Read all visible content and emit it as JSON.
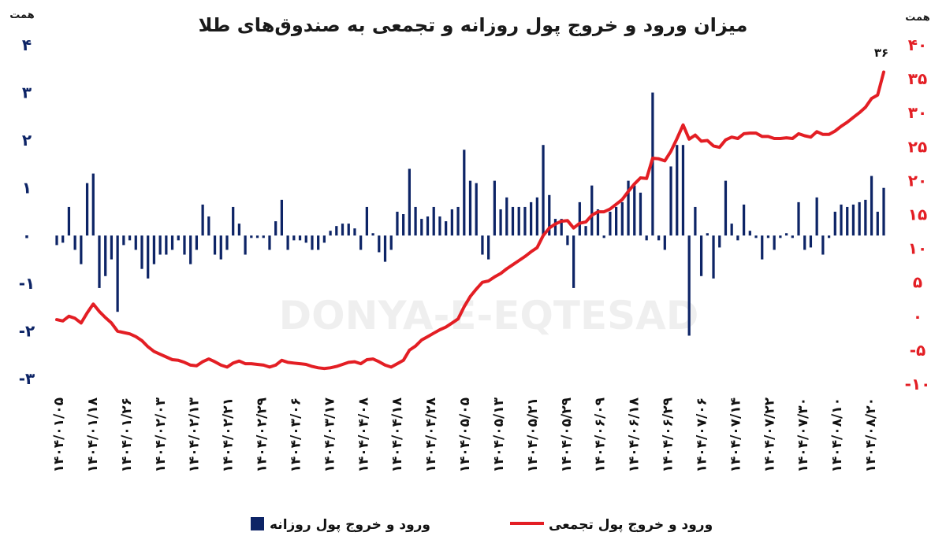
{
  "chart_data": {
    "type": "bar+line",
    "title": "میزان ورود و خروج پول روزانه و تجمعی به صندوق‌های طلا",
    "watermark": "DONYA-E-EQTESAD",
    "left_axis": {
      "unit": "همت",
      "ticks": [
        "۴",
        "۳",
        "۲",
        "۱",
        "۰",
        "-۱",
        "-۲",
        "-۳"
      ],
      "tick_values": [
        4,
        3,
        2,
        1,
        0,
        -1,
        -2,
        -3
      ],
      "ylim": [
        -3,
        4
      ],
      "color": "#0d2466"
    },
    "right_axis": {
      "unit": "همت",
      "ticks": [
        "۴۰",
        "۳۵",
        "۳۰",
        "۲۵",
        "۲۰",
        "۱۵",
        "۱۰",
        "۵",
        "۰",
        "-۵",
        "-۱۰"
      ],
      "tick_values": [
        40,
        35,
        30,
        25,
        20,
        15,
        10,
        5,
        0,
        -5,
        -10
      ],
      "ylim": [
        -10,
        40
      ],
      "color": "#e31e24"
    },
    "x_tick_labels": [
      "۱۴۰۴/۰۱/۰۵",
      "۱۴۰۴/۰۱/۱۸",
      "۱۴۰۴/۰۱/۲۶",
      "۱۴۰۴/۰۲/۰۳",
      "۱۴۰۴/۰۲/۱۳",
      "۱۴۰۴/۰۲/۲۱",
      "۱۴۰۴/۰۲/۲۹",
      "۱۴۰۴/۰۳/۰۶",
      "۱۴۰۴/۰۳/۱۷",
      "۱۴۰۴/۰۴/۰۸",
      "۱۴۰۴/۰۴/۱۸",
      "۱۴۰۴/۰۴/۲۸",
      "۱۴۰۴/۰۵/۰۵",
      "۱۴۰۴/۰۵/۱۳",
      "۱۴۰۴/۰۵/۲۱",
      "۱۴۰۴/۰۵/۲۹",
      "۱۴۰۴/۰۶/۰۹",
      "۱۴۰۴/۰۶/۱۸",
      "۱۴۰۴/۰۶/۲۹",
      "۱۴۰۴/۰۷/۰۶",
      "۱۴۰۴/۰۷/۱۴",
      "۱۴۰۴/۰۷/۲۲",
      "۱۴۰۴/۰۷/۳۰",
      "۱۴۰۴/۰۸/۱۰",
      "۱۴۰۴/۰۸/۲۰"
    ],
    "series": [
      {
        "name": "ورود و خروج پول روزانه",
        "type": "bar",
        "axis": "left",
        "color": "#0d2466",
        "values": [
          -0.2,
          -0.15,
          0.6,
          -0.3,
          -0.6,
          1.1,
          1.3,
          -1.1,
          -0.85,
          -0.5,
          -1.6,
          -0.2,
          -0.1,
          -0.3,
          -0.7,
          -0.9,
          -0.6,
          -0.4,
          -0.4,
          -0.3,
          -0.1,
          -0.4,
          -0.6,
          -0.3,
          0.65,
          0.4,
          -0.4,
          -0.5,
          -0.3,
          0.6,
          0.25,
          -0.4,
          -0.05,
          -0.05,
          -0.05,
          -0.3,
          0.3,
          0.75,
          -0.3,
          -0.1,
          -0.1,
          -0.15,
          -0.3,
          -0.3,
          -0.15,
          0.1,
          0.2,
          0.25,
          0.25,
          0.15,
          -0.3,
          0.6,
          0.05,
          -0.35,
          -0.55,
          -0.3,
          0.5,
          0.45,
          1.4,
          0.6,
          0.35,
          0.4,
          0.6,
          0.4,
          0.3,
          0.55,
          0.6,
          1.8,
          1.15,
          1.1,
          -0.4,
          -0.5,
          1.15,
          0.55,
          0.8,
          0.6,
          0.6,
          0.6,
          0.7,
          0.8,
          1.9,
          0.85,
          0.35,
          0.35,
          -0.2,
          -1.1,
          0.7,
          0.2,
          1.05,
          0.55,
          -0.05,
          0.5,
          0.6,
          0.7,
          1.15,
          1.05,
          0.9,
          -0.1,
          3.0,
          -0.1,
          -0.3,
          1.45,
          1.9,
          1.9,
          -2.1,
          0.6,
          -0.85,
          0.05,
          -0.9,
          -0.25,
          1.15,
          0.25,
          -0.1,
          0.65,
          0.1,
          -0.05,
          -0.5,
          -0.05,
          -0.3,
          -0.05,
          0.05,
          -0.05,
          0.7,
          -0.3,
          -0.25,
          0.8,
          -0.4,
          -0.05,
          0.5,
          0.65,
          0.6,
          0.65,
          0.7,
          0.75,
          1.25,
          0.5,
          1.0
        ]
      },
      {
        "name": "ورود و خروج پول تجمعی",
        "type": "line",
        "axis": "right",
        "color": "#e31e24",
        "values": [
          -0.5,
          -0.7,
          0.0,
          -0.3,
          -1.0,
          0.5,
          1.8,
          0.7,
          -0.2,
          -1.0,
          -2.2,
          -2.4,
          -2.6,
          -3.0,
          -3.6,
          -4.5,
          -5.2,
          -5.6,
          -6.0,
          -6.4,
          -6.5,
          -6.8,
          -7.2,
          -7.3,
          -6.7,
          -6.3,
          -6.7,
          -7.2,
          -7.5,
          -6.9,
          -6.6,
          -7.0,
          -7.0,
          -7.1,
          -7.2,
          -7.5,
          -7.2,
          -6.5,
          -6.8,
          -6.9,
          -7.0,
          -7.1,
          -7.4,
          -7.6,
          -7.7,
          -7.6,
          -7.4,
          -7.1,
          -6.8,
          -6.7,
          -7.0,
          -6.4,
          -6.3,
          -6.7,
          -7.2,
          -7.5,
          -7.0,
          -6.5,
          -5.0,
          -4.4,
          -3.5,
          -3.0,
          -2.5,
          -2.0,
          -1.6,
          -1.0,
          -0.4,
          1.4,
          2.9,
          4.0,
          5.0,
          5.2,
          5.8,
          6.3,
          7.0,
          7.6,
          8.2,
          8.8,
          9.5,
          10.1,
          11.9,
          13.0,
          13.6,
          14.0,
          14.1,
          13.0,
          13.7,
          13.9,
          14.9,
          15.4,
          15.4,
          15.8,
          16.5,
          17.2,
          18.4,
          19.5,
          20.4,
          20.3,
          23.3,
          23.2,
          22.9,
          24.3,
          26.2,
          28.2,
          26.1,
          26.7,
          25.8,
          25.9,
          25.1,
          24.9,
          26.0,
          26.4,
          26.2,
          26.9,
          27.0,
          27.0,
          26.5,
          26.5,
          26.2,
          26.2,
          26.3,
          26.2,
          26.9,
          26.6,
          26.4,
          27.2,
          26.8,
          26.8,
          27.3,
          28.0,
          28.6,
          29.3,
          30.0,
          30.8,
          32.1,
          32.6,
          36.0
        ]
      }
    ],
    "end_label": "۳۶",
    "legend": {
      "placement": "bottom",
      "items": [
        {
          "label": "ورود و خروج پول روزانه",
          "symbol": "square",
          "color": "#0d2466"
        },
        {
          "label": "ورود و خروج پول تجمعی",
          "symbol": "line",
          "color": "#e31e24"
        }
      ]
    }
  }
}
